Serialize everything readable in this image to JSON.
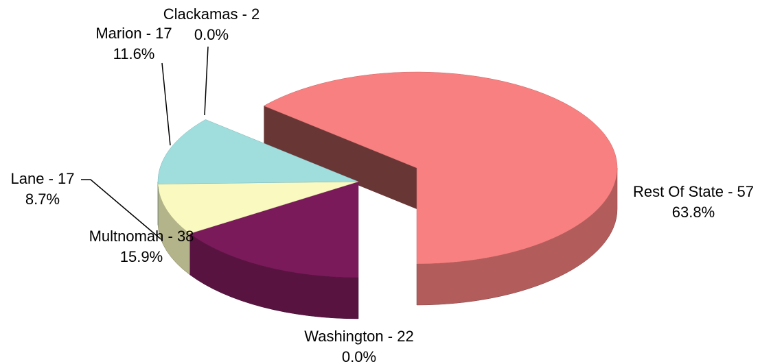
{
  "chart_data": {
    "type": "pie3d",
    "categories": [
      "Washington - 22",
      "Multnomah - 38",
      "Lane - 17",
      "Marion - 17",
      "Clackamas - 2",
      "Rest Of State - 57"
    ],
    "values": [
      0.0,
      15.9,
      8.7,
      11.6,
      0.0,
      63.8
    ],
    "value_labels": [
      "0.0%",
      "15.9%",
      "8.7%",
      "11.6%",
      "0.0%",
      "63.8%"
    ],
    "colors": [
      "#3a4fa0",
      "#7b1a5a",
      "#fafac0",
      "#a0dede",
      "#c0c0c0",
      "#f98080"
    ],
    "exploded": [
      false,
      false,
      false,
      false,
      false,
      true
    ]
  }
}
